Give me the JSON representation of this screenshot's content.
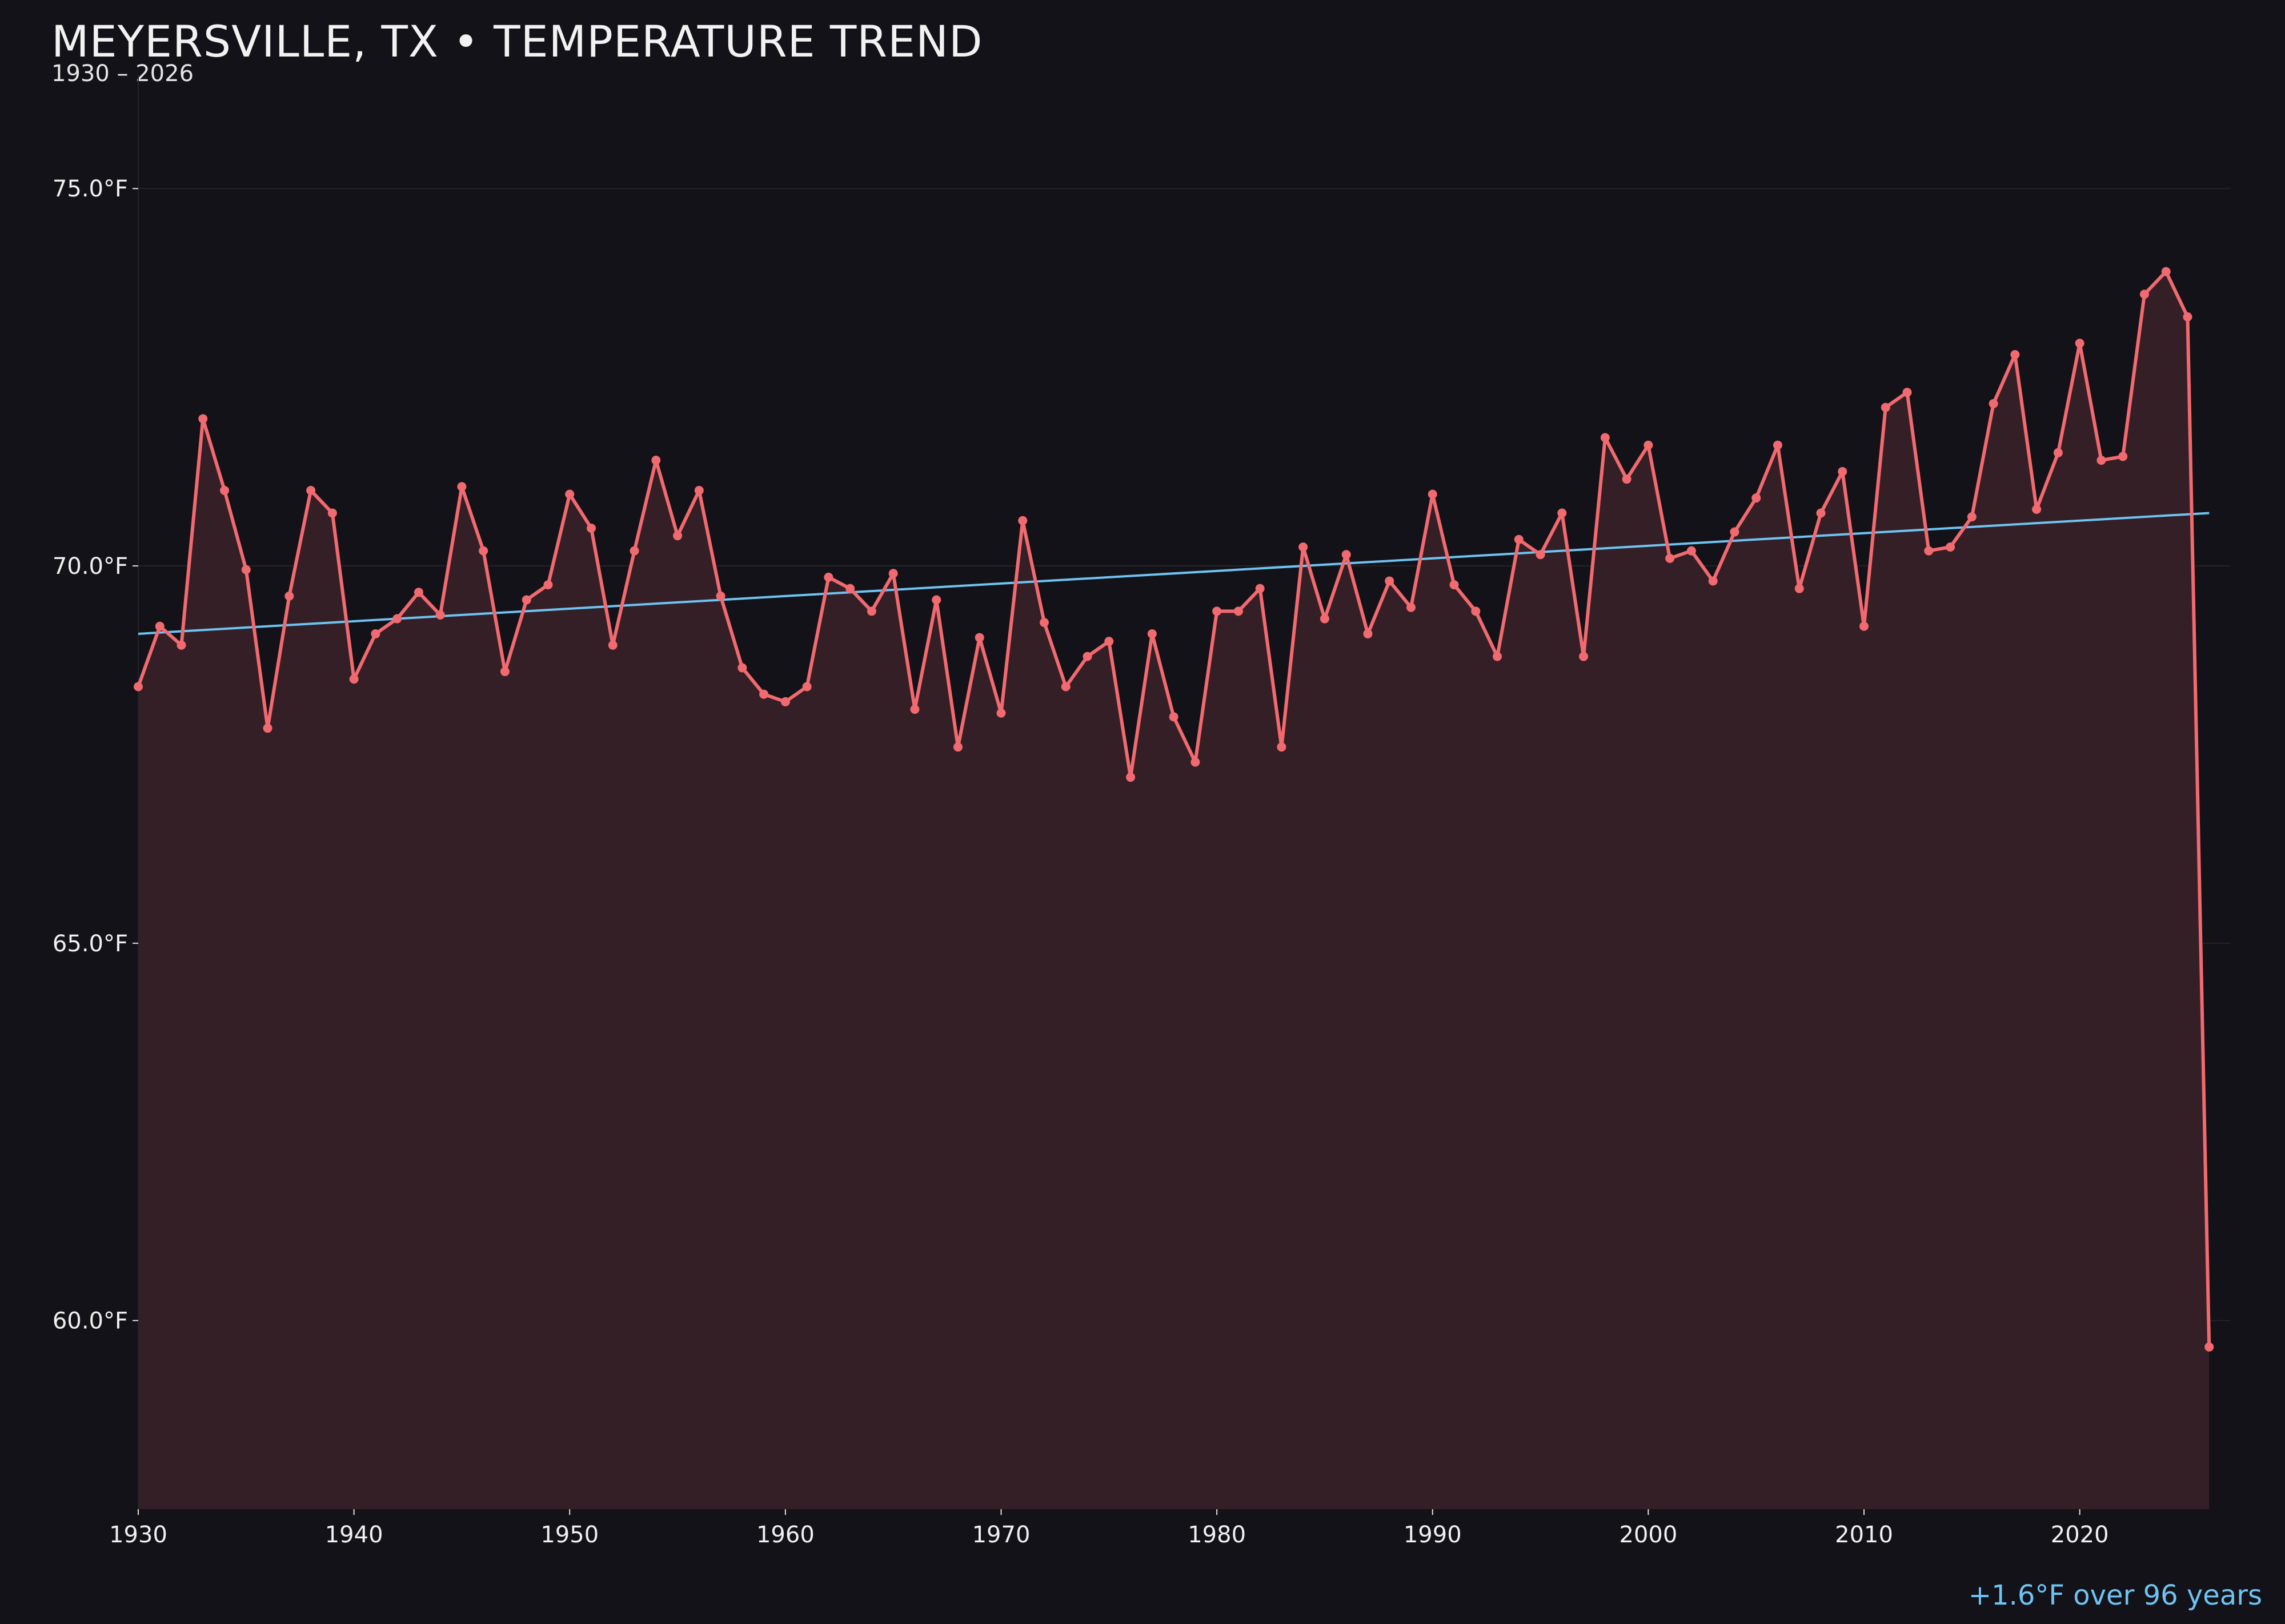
{
  "title": "MEYERSVILLE, TX • TEMPERATURE TREND",
  "subtitle": "1930 – 2026",
  "note": "+1.6°F over 96 years",
  "colors": {
    "background": "#131218",
    "line": "#f06a6f",
    "fill": "#351f26",
    "trend": "#6ec3f2",
    "grid": "#24222a"
  },
  "chart_data": {
    "type": "line",
    "xlim": [
      1930,
      2027
    ],
    "ylim": [
      57.5,
      76.5
    ],
    "xticks": [
      1930,
      1940,
      1950,
      1960,
      1970,
      1980,
      1990,
      2000,
      2010,
      2020
    ],
    "xtick_labels": [
      "1930",
      "1940",
      "1950",
      "1960",
      "1970",
      "1980",
      "1990",
      "2000",
      "2010",
      "2020"
    ],
    "yticks": [
      60,
      65,
      70,
      75
    ],
    "ytick_labels": [
      "60.0°F",
      "65.0°F",
      "70.0°F",
      "75.0°F"
    ],
    "grid": true,
    "series": [
      {
        "x": [
          1930,
          1931,
          1932,
          1933,
          1934,
          1935,
          1936,
          1937,
          1938,
          1939,
          1940,
          1941,
          1942,
          1943,
          1944,
          1945,
          1946,
          1947,
          1948,
          1949,
          1950,
          1951,
          1952,
          1953,
          1954,
          1955,
          1956,
          1957,
          1958,
          1959,
          1960,
          1961,
          1962,
          1963,
          1964,
          1965,
          1966,
          1967,
          1968,
          1969,
          1970,
          1971,
          1972,
          1973,
          1974,
          1975,
          1976,
          1977,
          1978,
          1979,
          1980,
          1981,
          1982,
          1983,
          1984,
          1985,
          1986,
          1987,
          1988,
          1989,
          1990,
          1991,
          1992,
          1993,
          1994,
          1995,
          1996,
          1997,
          1998,
          1999,
          2000,
          2001,
          2002,
          2003,
          2004,
          2005,
          2006,
          2007,
          2008,
          2009,
          2010,
          2011,
          2012,
          2013,
          2014,
          2015,
          2016,
          2017,
          2018,
          2019,
          2020,
          2021,
          2022,
          2023,
          2024,
          2025,
          2026
        ],
        "y": [
          68.4,
          69.2,
          68.95,
          71.95,
          71.0,
          69.95,
          67.85,
          69.6,
          71.0,
          70.7,
          68.5,
          69.1,
          69.3,
          69.65,
          69.35,
          71.05,
          70.2,
          68.6,
          69.55,
          69.75,
          70.95,
          70.5,
          68.95,
          70.2,
          71.4,
          70.4,
          71.0,
          69.6,
          68.65,
          68.3,
          68.2,
          68.4,
          69.85,
          69.7,
          69.4,
          69.9,
          68.1,
          69.55,
          67.6,
          69.05,
          68.05,
          70.6,
          69.25,
          68.4,
          68.8,
          69.0,
          67.2,
          69.1,
          68.0,
          67.4,
          69.4,
          69.4,
          69.7,
          67.6,
          70.25,
          69.3,
          70.15,
          69.1,
          69.8,
          69.45,
          70.95,
          69.75,
          69.4,
          68.8,
          70.35,
          70.15,
          70.7,
          68.8,
          71.7,
          71.15,
          71.6,
          70.1,
          70.2,
          69.8,
          70.45,
          70.9,
          71.6,
          69.7,
          70.7,
          71.25,
          69.2,
          72.1,
          72.3,
          70.2,
          70.25,
          70.65,
          72.15,
          72.8,
          70.75,
          71.5,
          72.95,
          71.4,
          71.45,
          73.6,
          73.9,
          73.3,
          59.65
        ]
      }
    ],
    "trend": {
      "x": [
        1930,
        2026
      ],
      "y": [
        69.1,
        70.7
      ]
    }
  }
}
